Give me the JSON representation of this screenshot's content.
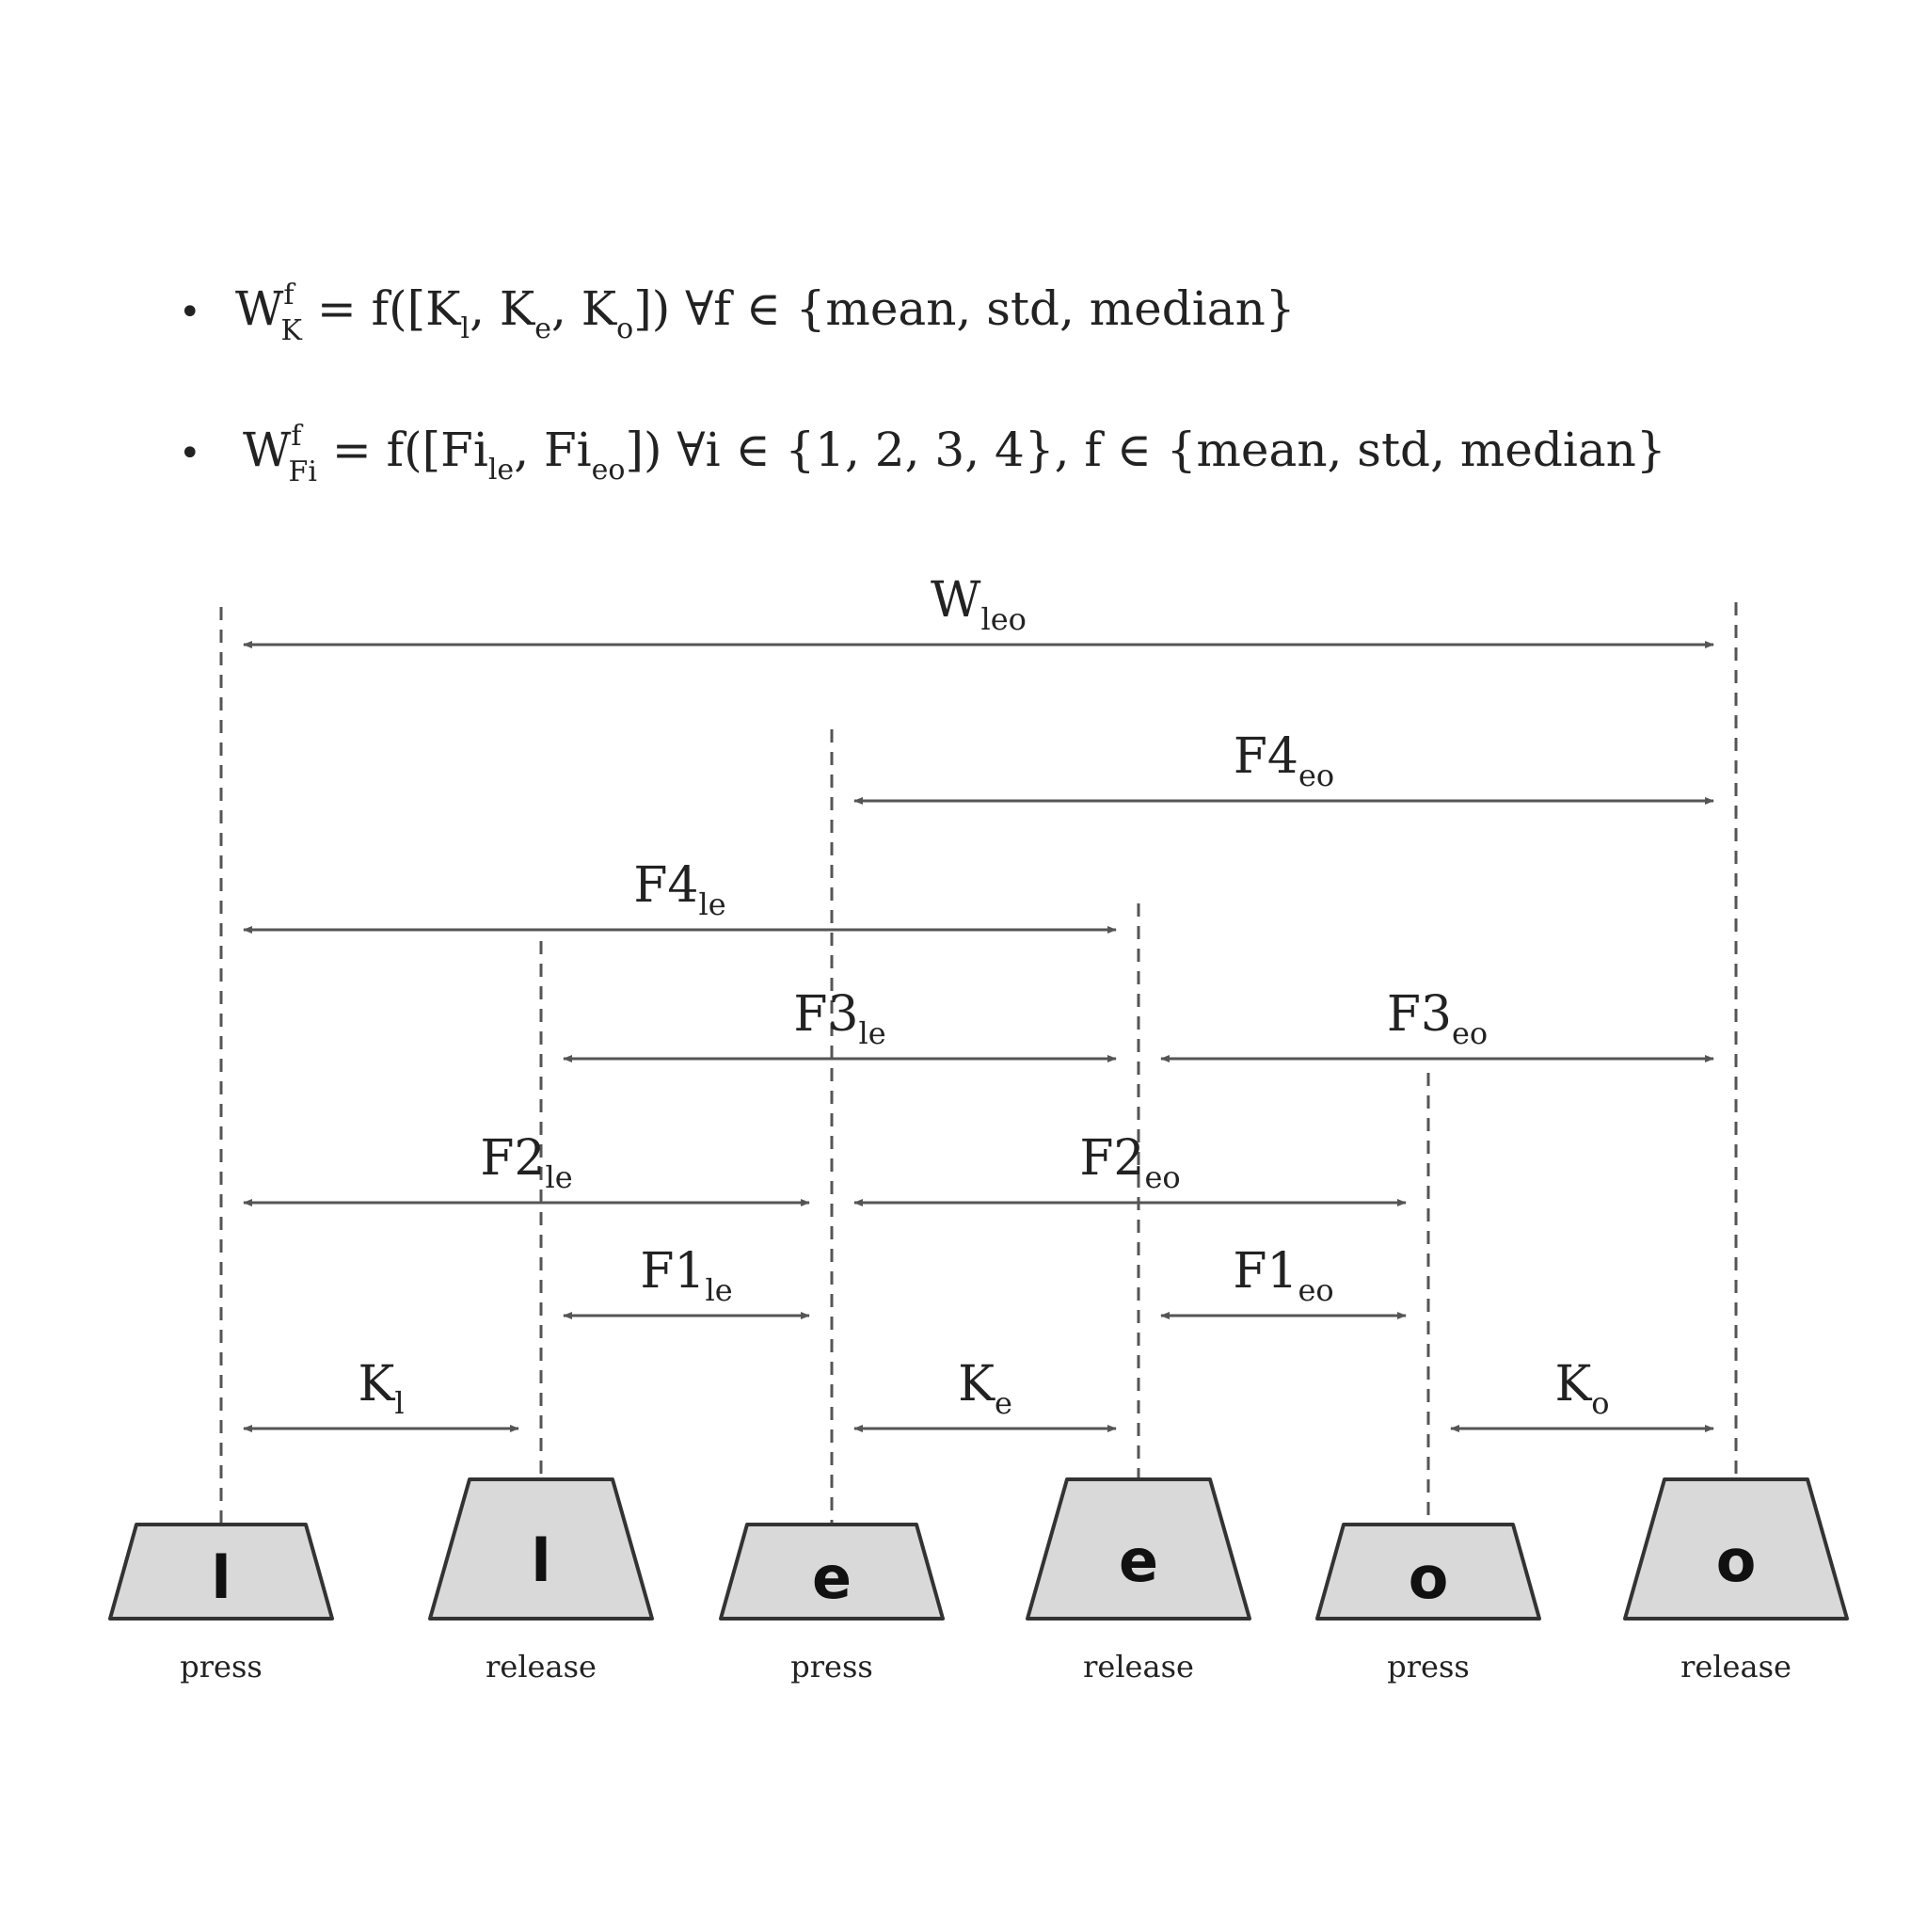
{
  "formulas": [
    {
      "bullet": "•",
      "lhs_base": "W",
      "lhs_sup": "f",
      "lhs_sub": "K",
      "rhs_parts": [
        {
          "t": " = f([K"
        },
        {
          "t": "l",
          "sub": true
        },
        {
          "t": ", K"
        },
        {
          "t": "e",
          "sub": true
        },
        {
          "t": ", K"
        },
        {
          "t": "o",
          "sub": true
        },
        {
          "t": "])  ∀f ∈ {mean, std, median}"
        }
      ]
    },
    {
      "bullet": "•",
      "lhs_base": "W",
      "lhs_sup": "f",
      "lhs_sub": "Fi",
      "rhs_parts": [
        {
          "t": " = f([Fi"
        },
        {
          "t": "le",
          "sub": true
        },
        {
          "t": ", Fi"
        },
        {
          "t": "eo",
          "sub": true
        },
        {
          "t": "])  ∀i ∈ {1, 2, 3, 4}, f ∈ {mean, std, median}"
        }
      ]
    }
  ],
  "intervals": [
    {
      "base": "W",
      "sub": "leo",
      "from": 0,
      "to": 5,
      "level": 7
    },
    {
      "base": "F4",
      "sub": "eo",
      "from": 2,
      "to": 5,
      "level": 6
    },
    {
      "base": "F4",
      "sub": "le",
      "from": 0,
      "to": 3,
      "level": 5
    },
    {
      "base": "F3",
      "sub": "le",
      "from": 1,
      "to": 3,
      "level": 4
    },
    {
      "base": "F3",
      "sub": "eo",
      "from": 3,
      "to": 5,
      "level": 4
    },
    {
      "base": "F2",
      "sub": "le",
      "from": 0,
      "to": 2,
      "level": 3
    },
    {
      "base": "F2",
      "sub": "eo",
      "from": 2,
      "to": 4,
      "level": 3
    },
    {
      "base": "F1",
      "sub": "le",
      "from": 1,
      "to": 2,
      "level": 2
    },
    {
      "base": "F1",
      "sub": "eo",
      "from": 3,
      "to": 4,
      "level": 2
    },
    {
      "base": "K",
      "sub": "l",
      "from": 0,
      "to": 1,
      "level": 1
    },
    {
      "base": "K",
      "sub": "e",
      "from": 2,
      "to": 3,
      "level": 1
    },
    {
      "base": "K",
      "sub": "o",
      "from": 4,
      "to": 5,
      "level": 1
    }
  ],
  "keys": [
    {
      "letter": "l",
      "event": "press"
    },
    {
      "letter": "l",
      "event": "release"
    },
    {
      "letter": "e",
      "event": "press"
    },
    {
      "letter": "e",
      "event": "release"
    },
    {
      "letter": "o",
      "event": "press"
    },
    {
      "letter": "o",
      "event": "release"
    }
  ],
  "colors": {
    "key_fill": "#d9d9d9",
    "key_stroke": "#333333",
    "line": "#555555",
    "text": "#222222"
  }
}
